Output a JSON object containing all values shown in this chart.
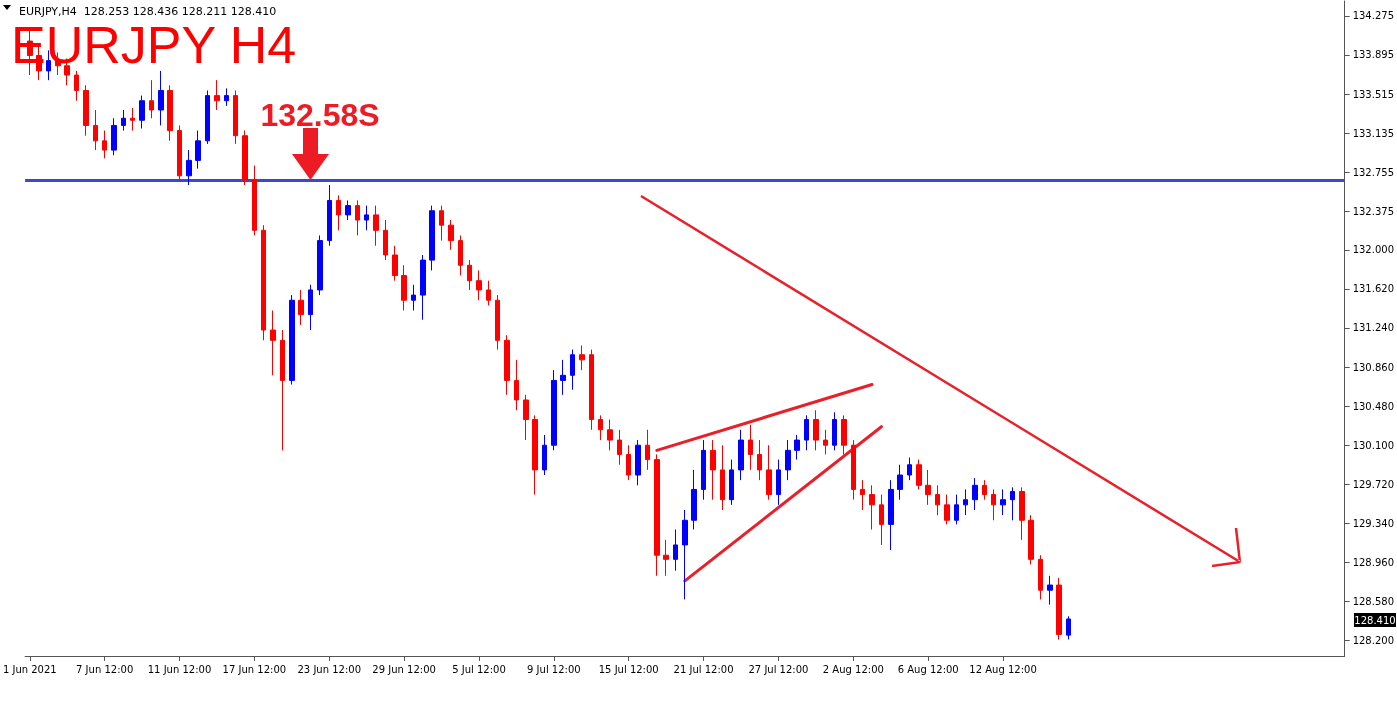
{
  "chart_data": {
    "type": "candlestick",
    "title": "EURJPY H4",
    "subtitle": "EURJPY,H4  128.253 128.436 128.211 128.410",
    "categories": [
      "1 Jun 2021",
      null,
      null,
      null,
      null,
      null,
      null,
      null,
      "7 Jun 12:00",
      null,
      null,
      null,
      null,
      null,
      null,
      null,
      "11 Jun 12:00",
      null,
      null,
      null,
      null,
      null,
      null,
      null,
      "17 Jun 12:00",
      null,
      null,
      null,
      null,
      null,
      null,
      null,
      "23 Jun 12:00",
      null,
      null,
      null,
      null,
      null,
      null,
      null,
      "29 Jun 12:00",
      null,
      null,
      null,
      null,
      null,
      null,
      null,
      "5 Jul 12:00",
      null,
      null,
      null,
      null,
      null,
      null,
      null,
      "9 Jul 12:00",
      null,
      null,
      null,
      null,
      null,
      null,
      null,
      "15 Jul 12:00",
      null,
      null,
      null,
      null,
      null,
      null,
      null,
      "21 Jul 12:00",
      null,
      null,
      null,
      null,
      null,
      null,
      null,
      "27 Jul 12:00",
      null,
      null,
      null,
      null,
      null,
      null,
      null,
      "2 Aug 12:00",
      null,
      null,
      null,
      null,
      null,
      null,
      null,
      "6 Aug 12:00",
      null,
      null,
      null,
      null,
      null,
      null,
      null,
      "12 Aug 12:00",
      null,
      null,
      null,
      null,
      null,
      null,
      null,
      null,
      null,
      null,
      null,
      null,
      null,
      null,
      null,
      null,
      null,
      null,
      null,
      null,
      null,
      null,
      null,
      null,
      null,
      null,
      null,
      null,
      null,
      null,
      null,
      null,
      null,
      null,
      null,
      null
    ],
    "ohlc": [
      [
        134.03,
        134.13,
        133.7,
        133.89
      ],
      [
        133.89,
        133.99,
        133.65,
        133.74
      ],
      [
        133.74,
        133.94,
        133.65,
        133.84
      ],
      [
        133.84,
        133.92,
        133.7,
        133.79
      ],
      [
        133.79,
        133.86,
        133.6,
        133.7
      ],
      [
        133.7,
        133.74,
        133.45,
        133.55
      ],
      [
        133.55,
        133.6,
        133.11,
        133.21
      ],
      [
        133.21,
        133.36,
        132.97,
        133.06
      ],
      [
        133.06,
        133.16,
        132.89,
        132.97
      ],
      [
        132.97,
        133.28,
        132.92,
        133.21
      ],
      [
        133.21,
        133.36,
        133.16,
        133.28
      ],
      [
        133.28,
        133.38,
        133.16,
        133.26
      ],
      [
        133.26,
        133.5,
        133.18,
        133.45
      ],
      [
        133.45,
        133.65,
        133.28,
        133.36
      ],
      [
        133.36,
        133.74,
        133.21,
        133.55
      ],
      [
        133.55,
        133.6,
        133.06,
        133.16
      ],
      [
        133.16,
        133.21,
        132.66,
        132.72
      ],
      [
        132.72,
        132.97,
        132.63,
        132.87
      ],
      [
        132.87,
        133.16,
        132.79,
        133.06
      ],
      [
        133.06,
        133.55,
        133.03,
        133.5
      ],
      [
        133.5,
        133.65,
        133.36,
        133.45
      ],
      [
        133.45,
        133.57,
        133.4,
        133.5
      ],
      [
        133.5,
        133.55,
        133.03,
        133.11
      ],
      [
        133.11,
        133.16,
        132.63,
        132.68
      ],
      [
        132.68,
        132.82,
        132.14,
        132.19
      ],
      [
        132.19,
        132.24,
        131.12,
        131.22
      ],
      [
        131.22,
        131.41,
        130.78,
        131.12
      ],
      [
        131.12,
        131.22,
        130.05,
        130.73
      ],
      [
        130.73,
        131.56,
        130.69,
        131.51
      ],
      [
        131.51,
        131.61,
        131.27,
        131.37
      ],
      [
        131.37,
        131.66,
        131.22,
        131.61
      ],
      [
        131.61,
        132.14,
        131.56,
        132.09
      ],
      [
        132.09,
        132.63,
        132.04,
        132.48
      ],
      [
        132.48,
        132.53,
        132.19,
        132.34
      ],
      [
        132.34,
        132.48,
        132.29,
        132.43
      ],
      [
        132.43,
        132.48,
        132.14,
        132.29
      ],
      [
        132.29,
        132.43,
        132.19,
        132.34
      ],
      [
        132.34,
        132.43,
        132.04,
        132.19
      ],
      [
        132.19,
        132.29,
        131.9,
        131.95
      ],
      [
        131.95,
        132.04,
        131.7,
        131.75
      ],
      [
        131.75,
        131.85,
        131.41,
        131.51
      ],
      [
        131.51,
        131.66,
        131.41,
        131.56
      ],
      [
        131.56,
        131.95,
        131.32,
        131.9
      ],
      [
        131.9,
        132.43,
        131.8,
        132.38
      ],
      [
        132.38,
        132.43,
        132.09,
        132.24
      ],
      [
        132.24,
        132.29,
        132.0,
        132.09
      ],
      [
        132.09,
        132.14,
        131.75,
        131.85
      ],
      [
        131.85,
        131.9,
        131.61,
        131.7
      ],
      [
        131.7,
        131.8,
        131.51,
        131.61
      ],
      [
        131.61,
        131.7,
        131.46,
        131.51
      ],
      [
        131.51,
        131.56,
        131.03,
        131.12
      ],
      [
        131.12,
        131.17,
        130.59,
        130.73
      ],
      [
        130.73,
        130.93,
        130.44,
        130.54
      ],
      [
        130.54,
        130.59,
        130.15,
        130.35
      ],
      [
        130.35,
        130.39,
        129.62,
        129.86
      ],
      [
        129.86,
        130.2,
        129.81,
        130.1
      ],
      [
        130.1,
        130.83,
        130.05,
        130.73
      ],
      [
        130.73,
        130.93,
        130.59,
        130.78
      ],
      [
        130.78,
        131.03,
        130.64,
        130.98
      ],
      [
        130.98,
        131.07,
        130.83,
        130.93
      ],
      [
        130.98,
        131.03,
        130.25,
        130.35
      ],
      [
        130.35,
        130.39,
        130.15,
        130.25
      ],
      [
        130.25,
        130.35,
        130.05,
        130.15
      ],
      [
        130.15,
        130.25,
        129.91,
        130.01
      ],
      [
        130.01,
        130.1,
        129.76,
        129.81
      ],
      [
        129.81,
        130.15,
        129.71,
        130.1
      ],
      [
        130.1,
        130.25,
        129.86,
        129.96
      ],
      [
        129.96,
        130.01,
        128.83,
        129.03
      ],
      [
        129.03,
        129.18,
        128.83,
        128.99
      ],
      [
        128.99,
        129.28,
        128.88,
        129.13
      ],
      [
        129.13,
        129.47,
        128.6,
        129.37
      ],
      [
        129.37,
        129.86,
        129.28,
        129.67
      ],
      [
        129.67,
        130.15,
        129.57,
        130.05
      ],
      [
        130.05,
        130.15,
        129.57,
        129.86
      ],
      [
        129.86,
        130.1,
        129.47,
        129.57
      ],
      [
        129.57,
        129.96,
        129.52,
        129.86
      ],
      [
        129.86,
        130.25,
        129.76,
        130.15
      ],
      [
        130.15,
        130.3,
        129.86,
        130.01
      ],
      [
        130.01,
        130.15,
        129.76,
        129.86
      ],
      [
        129.86,
        130.1,
        129.57,
        129.62
      ],
      [
        129.62,
        129.96,
        129.52,
        129.86
      ],
      [
        129.86,
        130.15,
        129.76,
        130.05
      ],
      [
        130.05,
        130.2,
        129.96,
        130.15
      ],
      [
        130.15,
        130.39,
        130.05,
        130.35
      ],
      [
        130.35,
        130.44,
        130.05,
        130.15
      ],
      [
        130.15,
        130.25,
        130.01,
        130.1
      ],
      [
        130.1,
        130.42,
        130.05,
        130.35
      ],
      [
        130.35,
        130.39,
        130.01,
        130.1
      ],
      [
        130.1,
        130.15,
        129.57,
        129.67
      ],
      [
        129.67,
        129.76,
        129.47,
        129.62
      ],
      [
        129.62,
        129.71,
        129.28,
        129.52
      ],
      [
        129.52,
        129.62,
        129.13,
        129.33
      ],
      [
        129.33,
        129.76,
        129.08,
        129.67
      ],
      [
        129.67,
        129.91,
        129.57,
        129.81
      ],
      [
        129.81,
        129.98,
        129.76,
        129.91
      ],
      [
        129.91,
        129.96,
        129.67,
        129.71
      ],
      [
        129.71,
        129.86,
        129.52,
        129.62
      ],
      [
        129.62,
        129.71,
        129.42,
        129.52
      ],
      [
        129.52,
        129.62,
        129.33,
        129.37
      ],
      [
        129.37,
        129.62,
        129.33,
        129.52
      ],
      [
        129.52,
        129.67,
        129.42,
        129.57
      ],
      [
        129.57,
        129.78,
        129.47,
        129.71
      ],
      [
        129.71,
        129.76,
        129.57,
        129.62
      ],
      [
        129.62,
        129.67,
        129.37,
        129.52
      ],
      [
        129.52,
        129.67,
        129.42,
        129.57
      ],
      [
        129.57,
        129.69,
        129.37,
        129.65
      ],
      [
        129.65,
        129.69,
        129.18,
        129.37
      ],
      [
        129.37,
        129.42,
        128.94,
        128.99
      ],
      [
        128.99,
        129.03,
        128.6,
        128.69
      ],
      [
        128.69,
        128.83,
        128.55,
        128.74
      ],
      [
        128.74,
        128.81,
        128.21,
        128.26
      ],
      [
        128.253,
        128.436,
        128.211,
        128.41
      ],
      null,
      null,
      null,
      null,
      null,
      null,
      null,
      null,
      null,
      null,
      null,
      null,
      null,
      null,
      null,
      null,
      null,
      null,
      null,
      null,
      null,
      null,
      null,
      null,
      null,
      null,
      null,
      null,
      null
    ],
    "series": [
      {
        "type": "line",
        "color": "#e8202a",
        "values": [
          null,
          null,
          null,
          null,
          null,
          null,
          null,
          null,
          null,
          null,
          null,
          null,
          null,
          null,
          null,
          null,
          null,
          null,
          null,
          null,
          null,
          null,
          null,
          null,
          null,
          null,
          null,
          null,
          null,
          null,
          null,
          null,
          null,
          null,
          null,
          null,
          null,
          null,
          null,
          null,
          null,
          null,
          null,
          null,
          null,
          null,
          null,
          null,
          null,
          null,
          null,
          null,
          null,
          null,
          null,
          null,
          null,
          null,
          null,
          null,
          null,
          null,
          null,
          null,
          null,
          null,
          null,
          130.05,
          null,
          null,
          null,
          null,
          null,
          null,
          null,
          null,
          null,
          null,
          null,
          null,
          null,
          null,
          null,
          null,
          null,
          null,
          null,
          null,
          null,
          null,
          130.69,
          null,
          null,
          null,
          null,
          null,
          null,
          null,
          null,
          null,
          null,
          null,
          null,
          null,
          null,
          null,
          null,
          null,
          null,
          null,
          null,
          null,
          null,
          null,
          null,
          null,
          null,
          null,
          null,
          null,
          null,
          null,
          null,
          null,
          null,
          null,
          null,
          null,
          null,
          null,
          null,
          null,
          null,
          null,
          null,
          null,
          null,
          null,
          null,
          null,
          null
        ]
      },
      {
        "type": "line",
        "color": "#e8202a",
        "values": [
          null,
          null,
          null,
          null,
          null,
          null,
          null,
          null,
          null,
          null,
          null,
          null,
          null,
          null,
          null,
          null,
          null,
          null,
          null,
          null,
          null,
          null,
          null,
          null,
          null,
          null,
          null,
          null,
          null,
          null,
          null,
          null,
          null,
          null,
          null,
          null,
          null,
          null,
          null,
          null,
          null,
          null,
          null,
          null,
          null,
          null,
          null,
          null,
          null,
          null,
          null,
          null,
          null,
          null,
          null,
          null,
          null,
          null,
          null,
          null,
          null,
          null,
          null,
          null,
          null,
          null,
          null,
          null,
          null,
          null,
          128.78,
          null,
          null,
          null,
          null,
          null,
          null,
          null,
          null,
          null,
          null,
          null,
          null,
          null,
          null,
          null,
          null,
          null,
          null,
          null,
          null,
          130.28,
          null,
          null,
          null,
          null,
          null,
          null,
          null,
          null,
          null,
          null,
          null,
          null,
          null,
          null,
          null,
          null,
          null,
          null,
          null,
          null,
          null,
          null,
          null,
          null,
          null,
          null,
          null,
          null,
          null,
          null,
          null,
          null,
          null,
          null,
          null,
          null,
          null,
          null,
          null,
          null,
          null,
          null,
          null,
          null,
          null,
          null,
          null,
          null,
          null
        ]
      }
    ],
    "ylim": [
      128.05,
      134.42
    ],
    "yticks": [
      {
        "value": 128.2,
        "label": "128.200"
      },
      {
        "value": 128.58,
        "label": "128.580"
      },
      {
        "value": 128.96,
        "label": "128.960"
      },
      {
        "value": 129.34,
        "label": "129.340"
      },
      {
        "value": 129.72,
        "label": "129.720"
      },
      {
        "value": 130.1,
        "label": "130.100"
      },
      {
        "value": 130.48,
        "label": "130.480"
      },
      {
        "value": 130.86,
        "label": "130.860"
      },
      {
        "value": 131.24,
        "label": "131.240"
      },
      {
        "value": 131.62,
        "label": "131.620"
      },
      {
        "value": 132,
        "label": "132.000"
      },
      {
        "value": 132.375,
        "label": "132.375"
      },
      {
        "value": 132.755,
        "label": "132.755"
      },
      {
        "value": 133.135,
        "label": "133.135"
      },
      {
        "value": 133.515,
        "label": "133.515"
      },
      {
        "value": 133.895,
        "label": "133.895"
      },
      {
        "value": 134.275,
        "label": "134.275"
      }
    ],
    "ref_lines": [
      {
        "axis": "y",
        "value": 132.68,
        "label": null,
        "color": "#3f48cc"
      }
    ],
    "annotations": [
      "132.58S",
      "128.410"
    ]
  }
}
